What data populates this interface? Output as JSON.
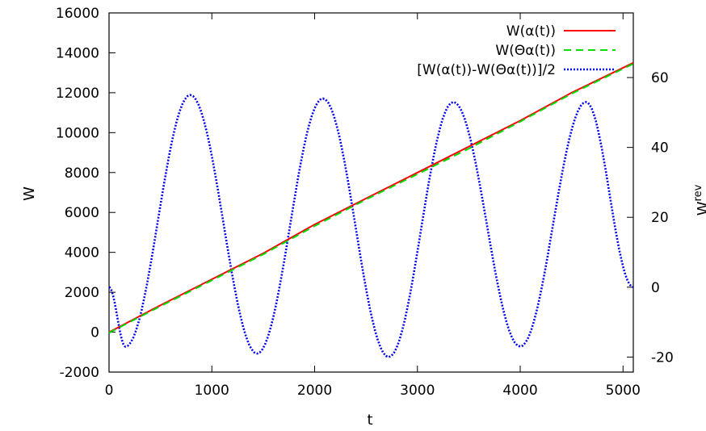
{
  "chart_data": {
    "type": "line",
    "xlabel": "t",
    "ylabel": "W",
    "y2label": "W",
    "y2label_superscript": "rev",
    "xlim": [
      0,
      5100
    ],
    "ylim": [
      -2000,
      16000
    ],
    "y2lim": [
      -24.3,
      78.5
    ],
    "x_ticks": [
      0,
      1000,
      2000,
      3000,
      4000,
      5000
    ],
    "y_ticks": [
      -2000,
      0,
      2000,
      4000,
      6000,
      8000,
      10000,
      12000,
      14000,
      16000
    ],
    "y2_ticks": [
      -20,
      0,
      20,
      40,
      60
    ],
    "grid": false,
    "legend_position": "top-right",
    "series": [
      {
        "name": "W(α(t))",
        "axis": "left",
        "color": "#ff0000",
        "dash": "solid",
        "x": [
          0,
          500,
          1000,
          1500,
          2000,
          2500,
          3000,
          3500,
          4000,
          4500,
          5100
        ],
        "y": [
          0,
          1350,
          2650,
          3950,
          5400,
          6700,
          8000,
          9300,
          10600,
          12000,
          13500
        ]
      },
      {
        "name": "W(Θα(t))",
        "axis": "left",
        "color": "#00dd00",
        "dash": "dashed",
        "x": [
          0,
          500,
          1000,
          1500,
          2000,
          2500,
          3000,
          3500,
          4000,
          4500,
          5100
        ],
        "y": [
          -30,
          1300,
          2600,
          3900,
          5320,
          6650,
          7920,
          9200,
          10550,
          11950,
          13450
        ]
      },
      {
        "name": "[W(α(t))-W(Θα(t))]/2",
        "axis": "right",
        "color": "#0000ee",
        "dash": "dotted",
        "x": [
          0,
          160,
          790,
          1440,
          2080,
          2720,
          3350,
          4000,
          4640,
          5100
        ],
        "y": [
          0,
          -17,
          55,
          -19,
          54,
          -20,
          53,
          -17,
          53,
          0
        ]
      }
    ]
  }
}
